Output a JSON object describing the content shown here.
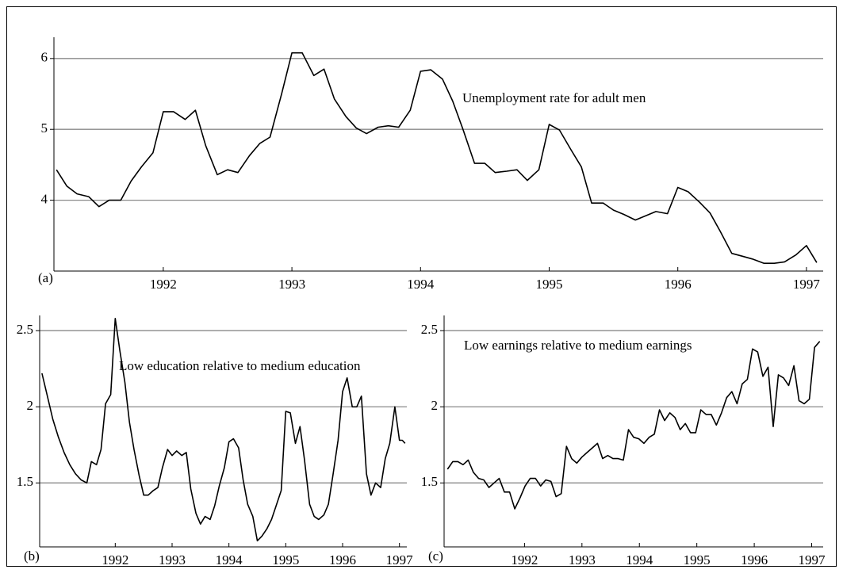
{
  "chart_data": [
    {
      "type": "line",
      "panel_label": "(a)",
      "annotation": "Unemployment rate for adult men",
      "color": "#000000",
      "grid": true,
      "xlim": [
        1991.15,
        1997.13
      ],
      "xticks": [
        1992,
        1993,
        1994,
        1995,
        1996,
        1997
      ],
      "ylim": [
        3.0,
        6.3
      ],
      "yticks": [
        4,
        5,
        6
      ],
      "x": [
        1991.17,
        1991.25,
        1991.33,
        1991.42,
        1991.5,
        1991.58,
        1991.67,
        1991.75,
        1991.83,
        1991.92,
        1992.0,
        1992.08,
        1992.17,
        1992.25,
        1992.33,
        1992.42,
        1992.5,
        1992.58,
        1992.67,
        1992.75,
        1992.83,
        1992.92,
        1993.0,
        1993.08,
        1993.17,
        1993.25,
        1993.33,
        1993.42,
        1993.5,
        1993.58,
        1993.67,
        1993.75,
        1993.83,
        1993.92,
        1994.0,
        1994.08,
        1994.17,
        1994.25,
        1994.33,
        1994.42,
        1994.5,
        1994.58,
        1994.67,
        1994.75,
        1994.83,
        1994.92,
        1995.0,
        1995.08,
        1995.17,
        1995.25,
        1995.33,
        1995.42,
        1995.5,
        1995.58,
        1995.67,
        1995.75,
        1995.83,
        1995.92,
        1996.0,
        1996.08,
        1996.17,
        1996.25,
        1996.33,
        1996.42,
        1996.5,
        1996.58,
        1996.67,
        1996.75,
        1996.83,
        1996.92,
        1997.0,
        1997.08
      ],
      "values": [
        4.43,
        4.2,
        4.09,
        4.05,
        3.91,
        4.0,
        4.0,
        4.27,
        4.47,
        4.67,
        5.25,
        5.25,
        5.14,
        5.27,
        4.77,
        4.36,
        4.43,
        4.39,
        4.63,
        4.8,
        4.89,
        5.5,
        6.08,
        6.08,
        5.76,
        5.85,
        5.43,
        5.18,
        5.02,
        4.94,
        5.03,
        5.05,
        5.03,
        5.27,
        5.82,
        5.84,
        5.71,
        5.4,
        5.0,
        4.52,
        4.52,
        4.39,
        4.41,
        4.43,
        4.28,
        4.43,
        5.07,
        4.99,
        4.71,
        4.47,
        3.96,
        3.96,
        3.86,
        3.8,
        3.72,
        3.78,
        3.84,
        3.81,
        4.18,
        4.12,
        3.97,
        3.82,
        3.56,
        3.25,
        3.21,
        3.17,
        3.11,
        3.11,
        3.13,
        3.23,
        3.36,
        3.12
      ]
    },
    {
      "type": "line",
      "panel_label": "(b)",
      "annotation": "Low education relative to medium education",
      "color": "#000000",
      "grid": true,
      "xlim": [
        1990.67,
        1997.13
      ],
      "xticks": [
        1992,
        1993,
        1994,
        1995,
        1996,
        1997
      ],
      "ylim": [
        1.08,
        2.6
      ],
      "yticks": [
        1.5,
        2,
        2.5
      ],
      "x": [
        1990.71,
        1990.8,
        1990.9,
        1991.0,
        1991.1,
        1991.2,
        1991.3,
        1991.4,
        1991.5,
        1991.58,
        1991.67,
        1991.75,
        1991.83,
        1991.92,
        1992.0,
        1992.08,
        1992.17,
        1992.25,
        1992.33,
        1992.42,
        1992.5,
        1992.58,
        1992.67,
        1992.75,
        1992.83,
        1992.92,
        1993.0,
        1993.08,
        1993.17,
        1993.25,
        1993.33,
        1993.42,
        1993.5,
        1993.58,
        1993.67,
        1993.75,
        1993.83,
        1993.92,
        1994.0,
        1994.08,
        1994.17,
        1994.25,
        1994.33,
        1994.42,
        1994.5,
        1994.58,
        1994.67,
        1994.75,
        1994.83,
        1994.92,
        1995.0,
        1995.08,
        1995.17,
        1995.25,
        1995.33,
        1995.42,
        1995.5,
        1995.58,
        1995.67,
        1995.75,
        1995.83,
        1995.92,
        1996.0,
        1996.08,
        1996.17,
        1996.25,
        1996.33,
        1996.42,
        1996.5,
        1996.58,
        1996.67,
        1996.75,
        1996.83,
        1996.92,
        1997.0,
        1997.05,
        1997.1
      ],
      "values": [
        2.22,
        2.08,
        1.92,
        1.8,
        1.7,
        1.62,
        1.56,
        1.52,
        1.5,
        1.64,
        1.62,
        1.72,
        2.02,
        2.08,
        2.58,
        2.37,
        2.16,
        1.9,
        1.72,
        1.55,
        1.42,
        1.42,
        1.45,
        1.47,
        1.6,
        1.72,
        1.68,
        1.71,
        1.68,
        1.7,
        1.46,
        1.3,
        1.23,
        1.28,
        1.26,
        1.35,
        1.48,
        1.6,
        1.77,
        1.79,
        1.73,
        1.52,
        1.36,
        1.28,
        1.12,
        1.15,
        1.2,
        1.26,
        1.35,
        1.45,
        1.97,
        1.96,
        1.76,
        1.87,
        1.65,
        1.36,
        1.28,
        1.26,
        1.29,
        1.36,
        1.55,
        1.78,
        2.1,
        2.19,
        2.0,
        2.0,
        2.07,
        1.56,
        1.42,
        1.5,
        1.47,
        1.66,
        1.76,
        2.0,
        1.78,
        1.78,
        1.76
      ]
    },
    {
      "type": "line",
      "panel_label": "(c)",
      "annotation": "Low earnings relative to medium earnings",
      "color": "#000000",
      "grid": true,
      "xlim": [
        1990.6,
        1997.2
      ],
      "xticks": [
        1992,
        1993,
        1994,
        1995,
        1996,
        1997
      ],
      "ylim": [
        1.08,
        2.6
      ],
      "yticks": [
        1.5,
        2,
        2.5
      ],
      "x": [
        1990.66,
        1990.75,
        1990.84,
        1990.93,
        1991.02,
        1991.11,
        1991.2,
        1991.29,
        1991.38,
        1991.47,
        1991.56,
        1991.65,
        1991.74,
        1991.83,
        1991.92,
        1992.01,
        1992.1,
        1992.19,
        1992.28,
        1992.37,
        1992.46,
        1992.55,
        1992.64,
        1992.73,
        1992.82,
        1992.91,
        1993.0,
        1993.09,
        1993.18,
        1993.27,
        1993.36,
        1993.45,
        1993.54,
        1993.63,
        1993.72,
        1993.81,
        1993.9,
        1993.99,
        1994.08,
        1994.17,
        1994.26,
        1994.35,
        1994.44,
        1994.53,
        1994.62,
        1994.71,
        1994.8,
        1994.89,
        1994.98,
        1995.07,
        1995.16,
        1995.25,
        1995.34,
        1995.43,
        1995.52,
        1995.61,
        1995.7,
        1995.79,
        1995.88,
        1995.97,
        1996.06,
        1996.15,
        1996.24,
        1996.33,
        1996.42,
        1996.51,
        1996.6,
        1996.69,
        1996.78,
        1996.87,
        1996.96,
        1997.05,
        1997.14
      ],
      "values": [
        1.59,
        1.64,
        1.64,
        1.62,
        1.65,
        1.57,
        1.53,
        1.52,
        1.47,
        1.5,
        1.53,
        1.44,
        1.44,
        1.33,
        1.4,
        1.48,
        1.53,
        1.53,
        1.48,
        1.52,
        1.51,
        1.41,
        1.43,
        1.74,
        1.66,
        1.63,
        1.67,
        1.7,
        1.73,
        1.76,
        1.66,
        1.68,
        1.66,
        1.66,
        1.65,
        1.85,
        1.8,
        1.79,
        1.76,
        1.8,
        1.82,
        1.98,
        1.91,
        1.96,
        1.93,
        1.85,
        1.89,
        1.83,
        1.83,
        1.98,
        1.95,
        1.95,
        1.88,
        1.96,
        2.06,
        2.1,
        2.02,
        2.15,
        2.18,
        2.38,
        2.36,
        2.2,
        2.26,
        1.87,
        2.21,
        2.19,
        2.14,
        2.27,
        2.04,
        2.02,
        2.05,
        2.39,
        2.43
      ]
    }
  ]
}
